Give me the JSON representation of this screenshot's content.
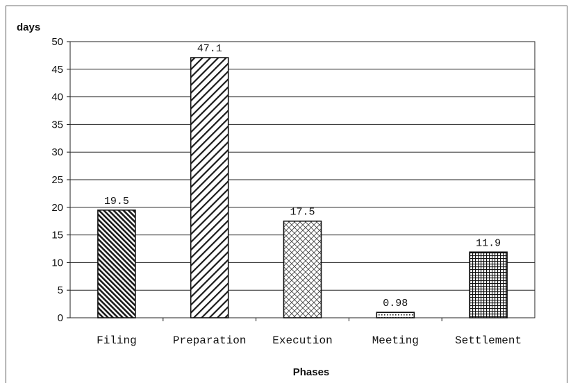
{
  "chart_data": {
    "type": "bar",
    "title": "",
    "xlabel": "Phases",
    "ylabel": "days",
    "categories": [
      "Filing",
      "Preparation",
      "Execution",
      "Meeting",
      "Settlement"
    ],
    "values": [
      19.5,
      47.1,
      17.5,
      0.98,
      11.9
    ],
    "value_labels": [
      "19.5",
      "47.1",
      "17.5",
      "0.98",
      "11.9"
    ],
    "yticks": [
      "0",
      "5",
      "10",
      "15",
      "20",
      "25",
      "30",
      "35",
      "40",
      "45",
      "50"
    ],
    "ylim": [
      0,
      50
    ],
    "grid": "horizontal",
    "legend": "none",
    "bar_patterns": [
      "dense-diagonal-back",
      "diagonal-forward",
      "crosshatch-diagonal",
      "dots",
      "grid"
    ],
    "colors": {
      "bar_stroke": "#111111",
      "grid": "#222222",
      "background": "#ffffff"
    }
  }
}
